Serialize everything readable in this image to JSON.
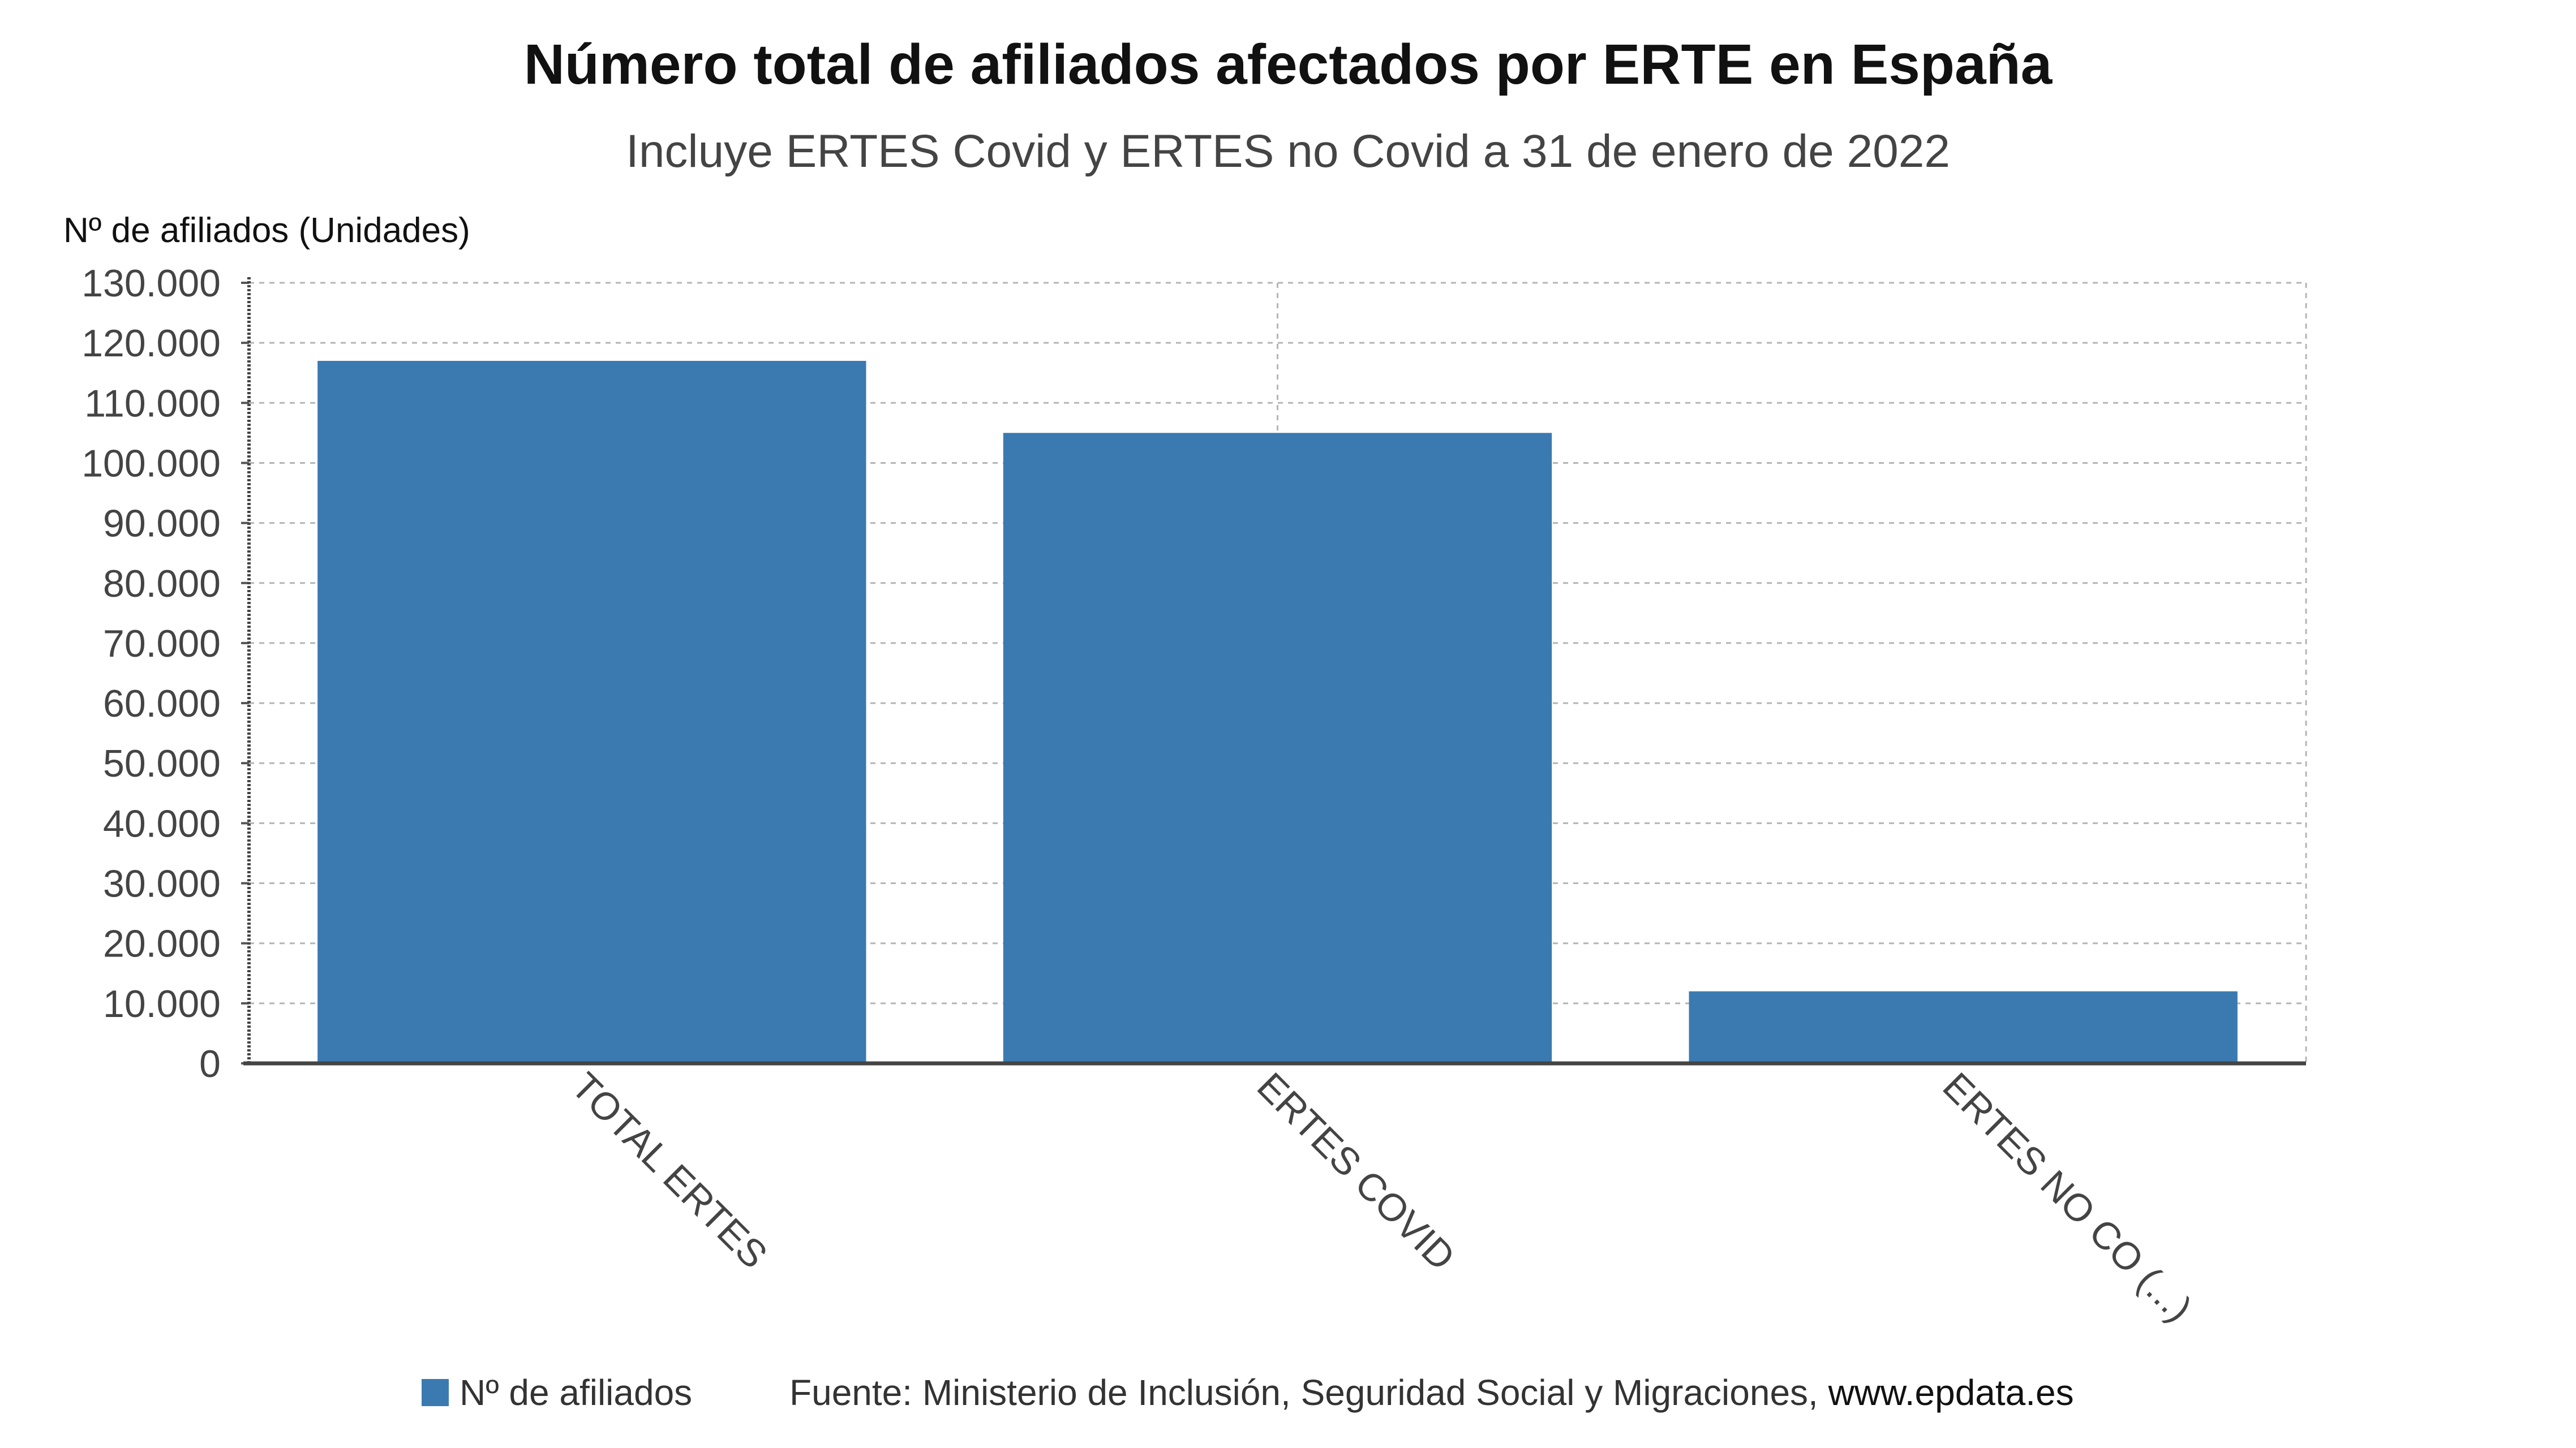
{
  "chart_data": {
    "type": "bar",
    "title": "Número total de afiliados afectados por ERTE en España",
    "subtitle": "Incluye ERTES Covid y ERTES no Covid a 31 de enero de 2022",
    "ylabel": "Nº de afiliados (Unidades)",
    "categories": [
      "TOTAL ERTES",
      "ERTES COVID",
      "ERTES NO CO (...)"
    ],
    "series": [
      {
        "name": "Nº de afiliados",
        "values": [
          117000,
          105000,
          12000
        ],
        "color": "#3a7ab0"
      }
    ],
    "ylim": [
      0,
      130000
    ],
    "yticks": [
      0,
      10000,
      20000,
      30000,
      40000,
      50000,
      60000,
      70000,
      80000,
      90000,
      100000,
      110000,
      120000,
      130000
    ],
    "ytick_labels": [
      "0",
      "10.000",
      "20.000",
      "30.000",
      "40.000",
      "50.000",
      "60.000",
      "70.000",
      "80.000",
      "90.000",
      "100.000",
      "110.000",
      "120.000",
      "130.000"
    ],
    "grid": true,
    "legend_position": "bottom-left"
  },
  "footer": {
    "source_prefix": "Fuente: Ministerio de Inclusión, Seguridad Social y Migraciones, ",
    "source_site": "www.epdata.es"
  }
}
